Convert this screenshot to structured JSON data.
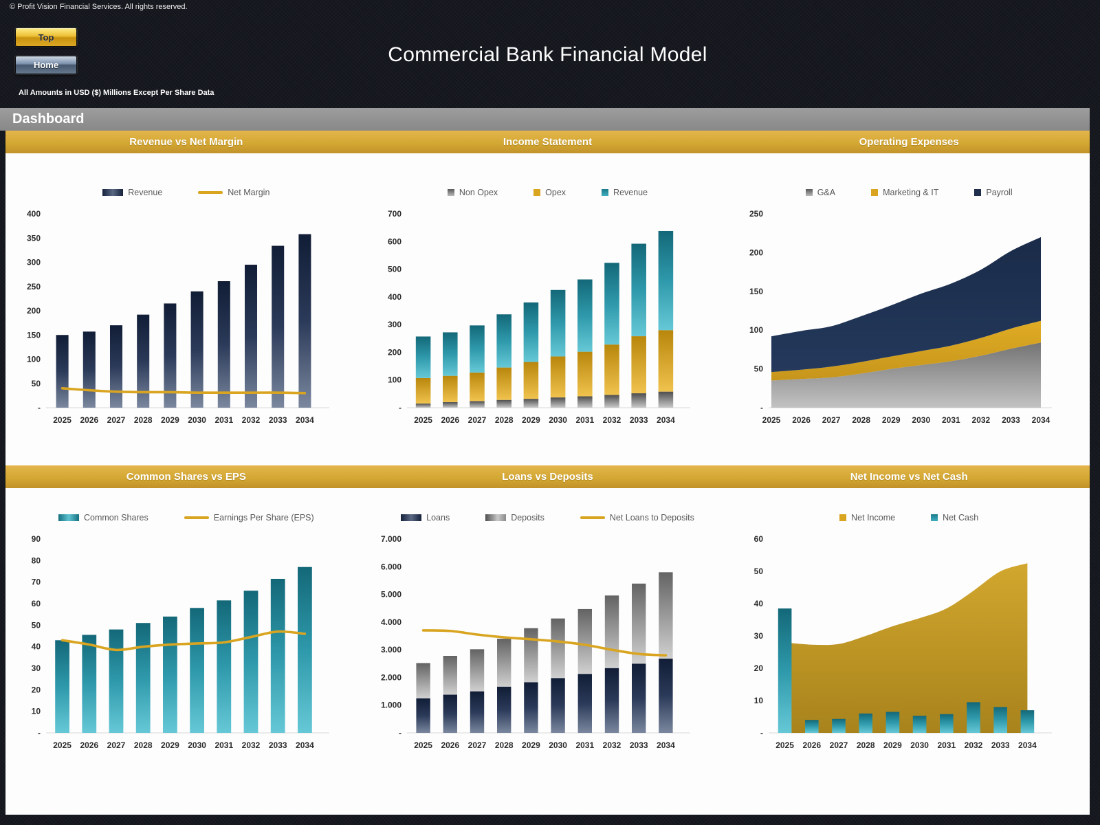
{
  "header": {
    "copyright": "© Profit Vision Financial Services. All rights reserved.",
    "buttons": {
      "top": "Top",
      "home": "Home"
    },
    "title": "Commercial Bank Financial Model",
    "amounts_note": "All Amounts in  USD ($) Millions Except Per Share Data",
    "section_label": "Dashboard"
  },
  "colors": {
    "accent_gold": "#D9A521",
    "navy": "#1F2E4D",
    "teal": "#2E99AB",
    "gray_band": "#8C8C8C",
    "title_bar_gold": "#D4A833",
    "background_dark": "#14161D",
    "panel_white": "#FDFDFD"
  },
  "chart_data": [
    {
      "id": "c1",
      "title": "Revenue vs Net Margin",
      "type": "bar",
      "x_mode": "slot",
      "bar_ratio": 0.46,
      "categories": [
        "2025",
        "2026",
        "2027",
        "2028",
        "2029",
        "2030",
        "2031",
        "2032",
        "2033",
        "2034"
      ],
      "ylim": [
        0,
        400
      ],
      "yticks": {
        "values": [
          400,
          350,
          300,
          250,
          200,
          150,
          100,
          50,
          0
        ],
        "labels": [
          "400",
          "350",
          "300",
          "250",
          "200",
          "150",
          "100",
          "50",
          "-"
        ]
      },
      "grid": false,
      "legend_position": "top",
      "series": [
        {
          "name": "Revenue",
          "type": "bar",
          "stack": false,
          "swatch": "navy",
          "legend": "bar",
          "values": [
            150,
            157,
            170,
            192,
            215,
            240,
            261,
            295,
            334,
            358
          ]
        },
        {
          "name": "Net Margin",
          "type": "line",
          "swatch": "goldLine",
          "legend": "line",
          "values": [
            40,
            36,
            33,
            32,
            32,
            31,
            31,
            31,
            31,
            30
          ]
        }
      ]
    },
    {
      "id": "c2",
      "title": "Income Statement",
      "type": "bar",
      "x_mode": "slot",
      "bar_ratio": 0.55,
      "categories": [
        "2025",
        "2026",
        "2027",
        "2028",
        "2029",
        "2030",
        "2031",
        "2032",
        "2033",
        "2034"
      ],
      "ylim": [
        0,
        700
      ],
      "yticks": {
        "values": [
          700,
          600,
          500,
          400,
          300,
          200,
          100,
          0
        ],
        "labels": [
          "700",
          "600",
          "500",
          "400",
          "300",
          "200",
          "100",
          "-"
        ]
      },
      "grid": false,
      "legend_position": "top",
      "series": [
        {
          "name": "Non Opex",
          "type": "bar",
          "stack": true,
          "swatch": "gray",
          "legend": "square",
          "values": [
            15,
            20,
            24,
            28,
            32,
            37,
            41,
            46,
            52,
            58
          ]
        },
        {
          "name": "Opex",
          "type": "bar",
          "stack": true,
          "swatch": "gold",
          "legend": "square",
          "values": [
            92,
            95,
            103,
            117,
            133,
            148,
            161,
            182,
            206,
            222
          ]
        },
        {
          "name": "Revenue",
          "type": "bar",
          "stack": true,
          "swatch": "teal",
          "legend": "square",
          "values": [
            150,
            157,
            170,
            192,
            215,
            240,
            261,
            295,
            334,
            358
          ]
        }
      ]
    },
    {
      "id": "c3",
      "title": "Operating Expenses",
      "type": "area",
      "x_mode": "point",
      "categories": [
        "2025",
        "2026",
        "2027",
        "2028",
        "2029",
        "2030",
        "2031",
        "2032",
        "2033",
        "2034"
      ],
      "ylim": [
        0,
        250
      ],
      "yticks": {
        "values": [
          250,
          200,
          150,
          100,
          50,
          0
        ],
        "labels": [
          "250",
          "200",
          "150",
          "100",
          "50",
          "-"
        ]
      },
      "grid": false,
      "legend_position": "top",
      "series": [
        {
          "name": "G&A",
          "type": "area",
          "stack": true,
          "swatch": "grayArea",
          "legend": "square",
          "legend_swatch": "gray",
          "values": [
            35,
            37,
            39,
            44,
            50,
            55,
            60,
            67,
            76,
            84
          ]
        },
        {
          "name": "Marketing & IT",
          "type": "area",
          "stack": true,
          "swatch": "goldArea2",
          "legend": "square",
          "legend_swatch": "gold",
          "values": [
            11,
            12,
            14,
            15,
            16,
            18,
            20,
            23,
            26,
            28
          ]
        },
        {
          "name": "Payroll",
          "type": "area",
          "stack": true,
          "swatch": "navyArea",
          "legend": "square",
          "legend_swatch": "navy",
          "values": [
            46,
            50,
            52,
            59,
            66,
            74,
            80,
            88,
            100,
            108
          ]
        }
      ]
    },
    {
      "id": "c4",
      "title": "Common Shares vs EPS",
      "type": "bar",
      "x_mode": "slot",
      "bar_ratio": 0.53,
      "categories": [
        "2025",
        "2026",
        "2027",
        "2028",
        "2029",
        "2030",
        "2031",
        "2032",
        "2033",
        "2034"
      ],
      "ylim": [
        0,
        90
      ],
      "yticks": {
        "values": [
          90,
          80,
          70,
          60,
          50,
          40,
          30,
          20,
          10,
          0
        ],
        "labels": [
          "90",
          "80",
          "70",
          "60",
          "50",
          "40",
          "30",
          "20",
          "10",
          "-"
        ]
      },
      "grid": false,
      "legend_position": "top",
      "series": [
        {
          "name": "Common Shares",
          "type": "bar",
          "stack": false,
          "swatch": "teal",
          "legend": "bar",
          "values": [
            43,
            45.5,
            48,
            51,
            54,
            58,
            61.5,
            66,
            71.5,
            77
          ]
        },
        {
          "name": "Earnings Per Share (EPS)",
          "type": "line",
          "swatch": "goldLine",
          "legend": "line",
          "values": [
            43,
            41,
            38.5,
            40,
            41,
            41.5,
            42,
            44.5,
            47,
            46
          ]
        }
      ]
    },
    {
      "id": "c5",
      "title": "Loans vs Deposits",
      "type": "bar",
      "x_mode": "slot",
      "bar_ratio": 0.52,
      "categories": [
        "2025",
        "2026",
        "2027",
        "2028",
        "2029",
        "2030",
        "2031",
        "2032",
        "2033",
        "2034"
      ],
      "ylim": [
        0,
        7000
      ],
      "yticks": {
        "values": [
          7000,
          6000,
          5000,
          4000,
          3000,
          2000,
          1000,
          0
        ],
        "labels": [
          "7.000",
          "6.000",
          "5.000",
          "4.000",
          "3.000",
          "2.000",
          "1.000",
          "-"
        ]
      },
      "grid": false,
      "legend_position": "top",
      "series": [
        {
          "name": "Loans",
          "type": "bar",
          "stack": true,
          "swatch": "navy",
          "legend": "bar",
          "values": [
            1250,
            1380,
            1500,
            1670,
            1830,
            1980,
            2130,
            2340,
            2500,
            2680
          ]
        },
        {
          "name": "Deposits",
          "type": "bar",
          "stack": true,
          "swatch": "grayDep",
          "legend": "bar",
          "legend_swatch": "gray",
          "values": [
            1270,
            1400,
            1520,
            1730,
            1950,
            2150,
            2340,
            2620,
            2890,
            3120
          ]
        },
        {
          "name": "Net Loans to Deposits",
          "type": "line",
          "swatch": "goldLine",
          "legend": "line",
          "values": [
            3700,
            3680,
            3550,
            3450,
            3380,
            3300,
            3180,
            3000,
            2850,
            2800
          ]
        }
      ]
    },
    {
      "id": "c6",
      "title": "Net Income vs Net Cash",
      "type": "area",
      "x_mode": "slot",
      "bar_ratio": 0.5,
      "categories": [
        "2025",
        "2026",
        "2027",
        "2028",
        "2029",
        "2030",
        "2031",
        "2032",
        "2033",
        "2034"
      ],
      "ylim": [
        0,
        60
      ],
      "yticks": {
        "values": [
          60,
          50,
          40,
          30,
          20,
          10,
          0
        ],
        "labels": [
          "60",
          "50",
          "40",
          "30",
          "20",
          "10",
          "-"
        ]
      },
      "grid": false,
      "legend_position": "top",
      "series": [
        {
          "name": "Net Income",
          "type": "area",
          "stack": false,
          "swatch": "goldArea",
          "legend": "square",
          "legend_swatch": "gold",
          "values": [
            28,
            27.3,
            27.5,
            30,
            33,
            35.5,
            38.5,
            44,
            50,
            52.5
          ]
        },
        {
          "name": "Net Cash",
          "type": "bar",
          "stack": false,
          "swatch": "teal",
          "legend": "square",
          "values": [
            38.5,
            4,
            4.3,
            6,
            6.5,
            5.3,
            5.8,
            9.5,
            8,
            7
          ]
        }
      ]
    }
  ]
}
